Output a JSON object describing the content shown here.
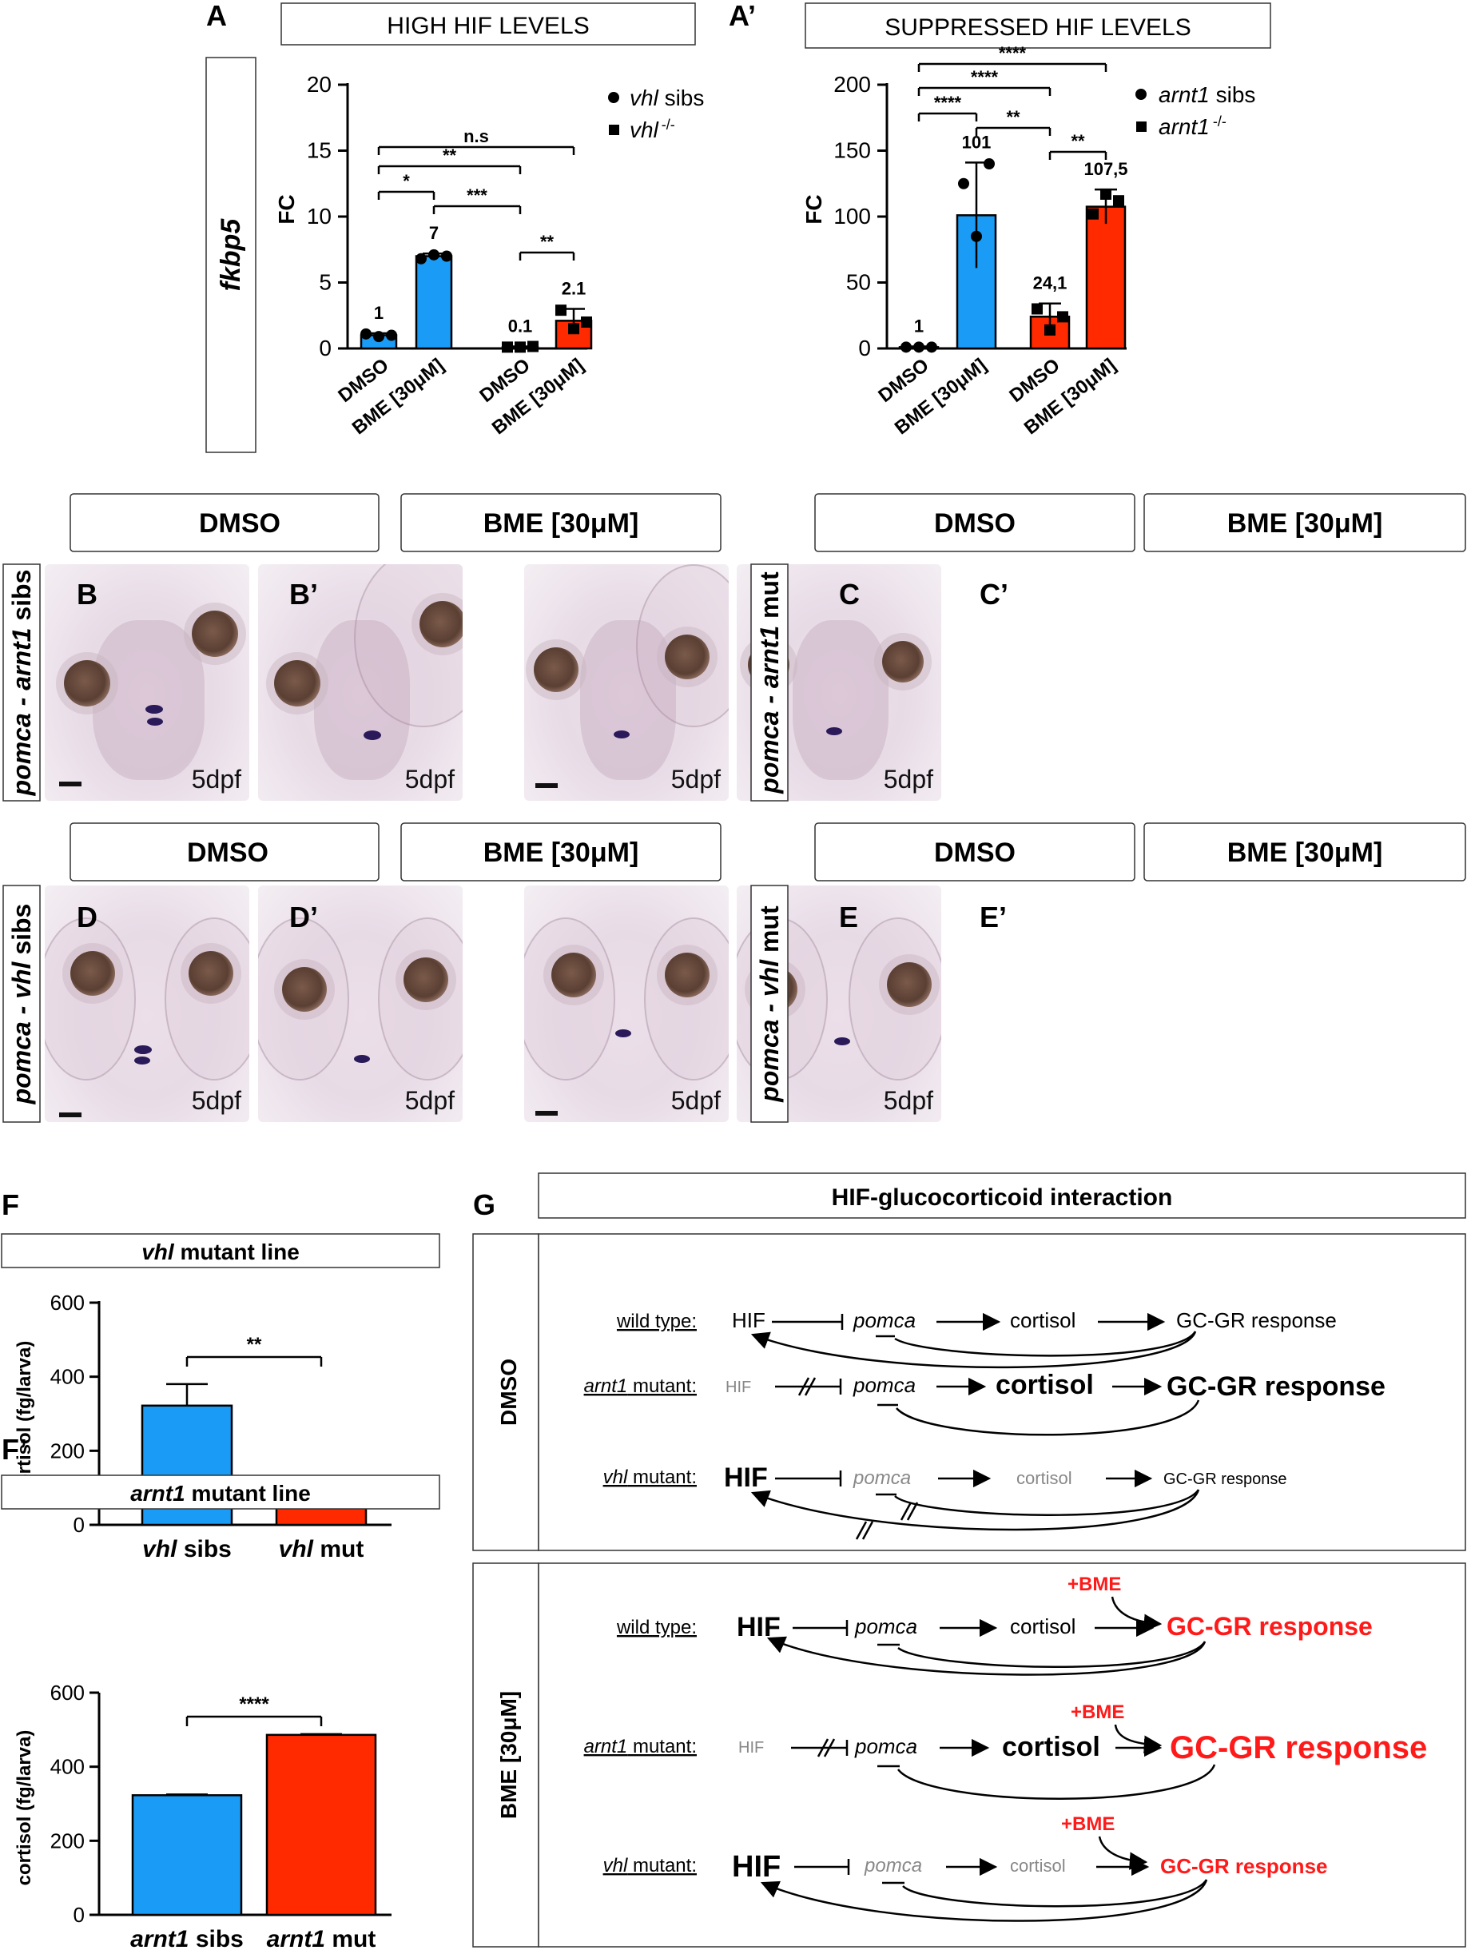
{
  "panels": {
    "A": "A",
    "A2": "A’",
    "B": "B",
    "B2": "B’",
    "C": "C",
    "C2": "C’",
    "D": "D",
    "D2": "D’",
    "E": "E",
    "E2": "E’",
    "F": "F",
    "F2": "F’",
    "G": "G"
  },
  "chart_A": {
    "header": "HIGH HIF LEVELS",
    "gene": "fkbp5",
    "ylabel": "FC",
    "yticks": [
      "0",
      "5",
      "10",
      "15",
      "20"
    ],
    "legend": [
      {
        "italic": "vhl",
        "rest": " sibs"
      },
      {
        "italic": "vhl",
        "sup": "-/-"
      }
    ],
    "xlabels": [
      "DMSO",
      "BME [30μM]",
      "DMSO",
      "BME [30μM]"
    ],
    "value_labels": [
      "1",
      "7",
      "0.1",
      "2.1"
    ],
    "sig": [
      "n.s",
      "**",
      "*",
      "***",
      "**"
    ]
  },
  "chart_A2": {
    "header": "SUPPRESSED HIF LEVELS",
    "ylabel": "FC",
    "yticks": [
      "0",
      "50",
      "100",
      "150",
      "200"
    ],
    "legend": [
      {
        "italic": "arnt1",
        "rest": " sibs"
      },
      {
        "italic": "arnt1",
        "sup": "-/-"
      }
    ],
    "xlabels": [
      "DMSO",
      "BME [30μM]",
      "DMSO",
      "BME [30μM]"
    ],
    "value_labels": [
      "1",
      "101",
      "24,1",
      "107,5"
    ],
    "sig": [
      "****",
      "****",
      "****",
      "**",
      "**"
    ]
  },
  "images": {
    "col_dmso": "DMSO",
    "col_bme": "BME [30μM]",
    "age": "5dpf",
    "row_B": {
      "a": "pomca - ",
      "b": "arnt1",
      "c": " sibs"
    },
    "row_C": {
      "a": "pomca - ",
      "b": "arnt1",
      "c": " mut"
    },
    "row_D": {
      "a": "pomca - ",
      "b": "vhl",
      "c": " sibs"
    },
    "row_E": {
      "a": "pomca - ",
      "b": "vhl",
      "c": " mut"
    }
  },
  "chart_F": {
    "title_italic": "vhl",
    "title_rest": " mutant line",
    "ylabel": "cortisol (fg/larva)",
    "yticks": [
      "0",
      "200",
      "400",
      "600"
    ],
    "categories": [
      {
        "italic": "vhl",
        "rest": " sibs"
      },
      {
        "italic": "vhl",
        "rest": " mut"
      }
    ],
    "sig": "**"
  },
  "chart_F2": {
    "title_italic": "arnt1",
    "title_rest": " mutant line",
    "ylabel": "cortisol (fg/larva)",
    "yticks": [
      "0",
      "200",
      "400",
      "600"
    ],
    "categories": [
      {
        "italic": "arnt1",
        "rest": " sibs"
      },
      {
        "italic": "arnt1",
        "rest": " mut"
      }
    ],
    "sig": "****"
  },
  "diagram_G": {
    "title": "HIF-glucocorticoid interaction",
    "side_dmso": "DMSO",
    "side_bme": "BME [30μM]",
    "wt_label": "wild type:",
    "arnt1_label_i": "arnt1",
    "arnt1_label_r": " mutant:",
    "vhl_label_i": "vhl",
    "vhl_label_r": " mutant:",
    "hif": "HIF",
    "pomca": "pomca",
    "cortisol": "cortisol",
    "gcgr": "GC-GR response",
    "bme": "+BME"
  },
  "colors": {
    "sibs": "#1a9cf6",
    "mut": "#ff2a00",
    "red_text": "#ff1a1a",
    "grey_text": "#888888"
  },
  "chart_data": [
    {
      "type": "bar",
      "title": "HIGH HIF LEVELS",
      "ylabel": "FC",
      "ylim": [
        0,
        20
      ],
      "categories": [
        "DMSO",
        "BME [30μM]",
        "DMSO",
        "BME [30μM]"
      ],
      "series": [
        {
          "name": "vhl sibs",
          "values": [
            1,
            7,
            null,
            null
          ],
          "errors": [
            0.15,
            0.2,
            null,
            null
          ],
          "points": [
            [
              1.1,
              0.9,
              1.0
            ],
            [
              6.8,
              7.1,
              7.0
            ]
          ]
        },
        {
          "name": "vhl -/-",
          "values": [
            null,
            null,
            0.1,
            2.1
          ],
          "errors": [
            null,
            null,
            0.05,
            0.9
          ],
          "points": [
            [
              0.1,
              0.1,
              0.15
            ],
            [
              2.9,
              1.5,
              2.0
            ]
          ]
        }
      ],
      "value_labels": [
        "1",
        "7",
        "0.1",
        "2.1"
      ]
    },
    {
      "type": "bar",
      "title": "SUPPRESSED HIF LEVELS",
      "ylabel": "FC",
      "ylim": [
        0,
        200
      ],
      "categories": [
        "DMSO",
        "BME [30μM]",
        "DMSO",
        "BME [30μM]"
      ],
      "series": [
        {
          "name": "arnt1 sibs",
          "values": [
            1,
            101,
            null,
            null
          ],
          "errors": [
            0.5,
            40,
            null,
            null
          ],
          "points": [
            [
              1,
              1,
              1
            ],
            [
              125,
              85,
              140
            ]
          ]
        },
        {
          "name": "arnt1 -/-",
          "values": [
            null,
            null,
            24.1,
            107.5
          ],
          "errors": [
            null,
            null,
            10,
            13
          ],
          "points": [
            [
              30,
              14,
              24
            ],
            [
              102,
              117,
              112
            ]
          ]
        }
      ],
      "value_labels": [
        "1",
        "101",
        "24,1",
        "107,5"
      ]
    },
    {
      "type": "bar",
      "title": "vhl mutant line",
      "ylabel": "cortisol (fg/larva)",
      "ylim": [
        0,
        600
      ],
      "categories": [
        "vhl sibs",
        "vhl mut"
      ],
      "values": [
        322,
        93
      ],
      "errors": [
        58,
        17
      ]
    },
    {
      "type": "bar",
      "title": "arnt1 mutant line",
      "ylabel": "cortisol (fg/larva)",
      "ylim": [
        0,
        600
      ],
      "categories": [
        "arnt1 sibs",
        "arnt1 mut"
      ],
      "values": [
        323,
        486
      ],
      "errors": [
        2,
        2
      ]
    }
  ]
}
